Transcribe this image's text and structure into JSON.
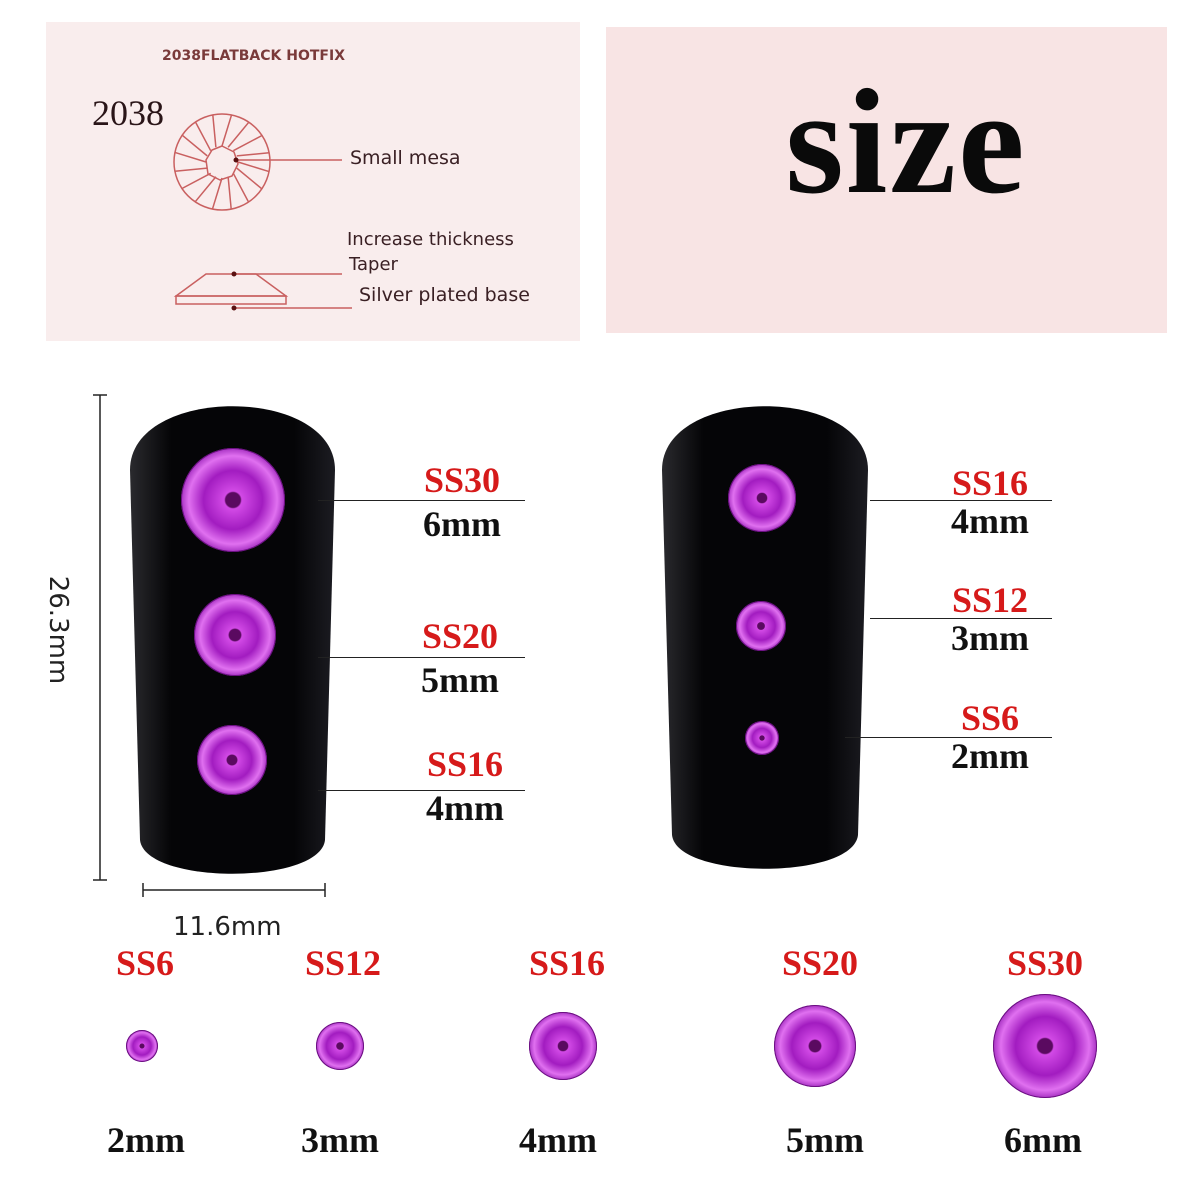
{
  "diagram": {
    "header": "2038FLATBACK HOTFIX",
    "model": "2038",
    "labels": {
      "mesa": "Small mesa",
      "thickness": "Increase thickness",
      "taper": "Taper",
      "base": "Silver plated base"
    }
  },
  "title": "size",
  "dimensions": {
    "height": "26.3mm",
    "width": "11.6mm"
  },
  "nail_left": [
    {
      "code": "SS30",
      "mm": "6mm"
    },
    {
      "code": "SS20",
      "mm": "5mm"
    },
    {
      "code": "SS16",
      "mm": "4mm"
    }
  ],
  "nail_right": [
    {
      "code": "SS16",
      "mm": "4mm"
    },
    {
      "code": "SS12",
      "mm": "3mm"
    },
    {
      "code": "SS6",
      "mm": "2mm"
    }
  ],
  "row": [
    {
      "code": "SS6",
      "mm": "2mm"
    },
    {
      "code": "SS12",
      "mm": "3mm"
    },
    {
      "code": "SS16",
      "mm": "4mm"
    },
    {
      "code": "SS20",
      "mm": "5mm"
    },
    {
      "code": "SS30",
      "mm": "6mm"
    }
  ],
  "colors": {
    "label_red": "#d61a1a",
    "gem": "#b020c8",
    "panel": "#f9eded",
    "diagram_line": "#c96060"
  }
}
